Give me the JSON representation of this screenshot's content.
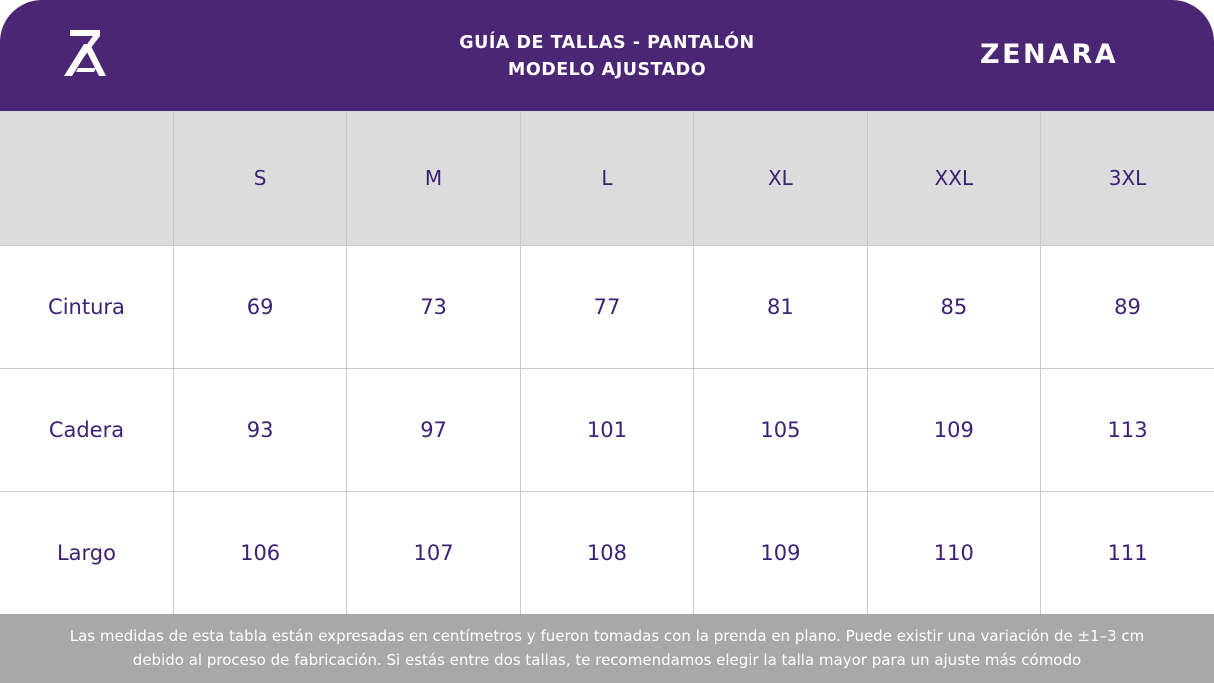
{
  "header": {
    "title_line1": "GUÍA DE TALLAS - PANTALÓN",
    "title_line2": "MODELO AJUSTADO",
    "brand": "ZENARA",
    "logo_text": "ZA"
  },
  "table": {
    "sizes": [
      "S",
      "M",
      "L",
      "XL",
      "XXL",
      "3XL"
    ],
    "rows": [
      {
        "label": "Cintura",
        "values": [
          "69",
          "73",
          "77",
          "81",
          "85",
          "89"
        ]
      },
      {
        "label": "Cadera",
        "values": [
          "93",
          "97",
          "101",
          "105",
          "109",
          "113"
        ]
      },
      {
        "label": "Largo",
        "values": [
          "106",
          "107",
          "108",
          "109",
          "110",
          "111"
        ]
      }
    ]
  },
  "footer": {
    "line1": "Las medidas de esta tabla están expresadas en centímetros y fueron tomadas con la prenda en plano. Puede existir una variación de ±1–3 cm",
    "line2": "debido al proceso de fabricación. Si estás entre dos tallas, te recomendamos elegir la talla mayor para un ajuste más cómodo"
  },
  "colors": {
    "header_bg": "#4b2674",
    "table_text": "#3d1f73",
    "header_row_bg": "#dcdcdc",
    "footer_bg": "#a8a8a8"
  }
}
